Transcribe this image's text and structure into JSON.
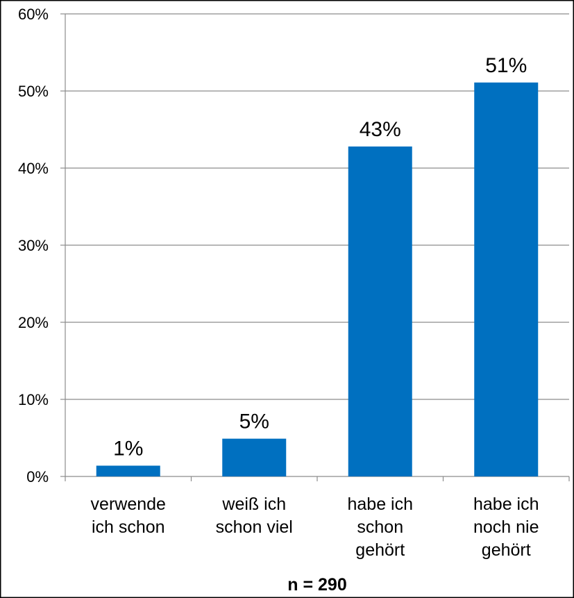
{
  "chart_data": {
    "type": "bar",
    "categories": [
      [
        "verwende",
        "ich schon"
      ],
      [
        "weiß ich",
        "schon viel"
      ],
      [
        "habe ich",
        "schon",
        "gehört"
      ],
      [
        "habe ich",
        "noch nie",
        "gehört"
      ]
    ],
    "values": [
      1.4,
      4.9,
      42.8,
      51.1
    ],
    "data_labels": [
      "1%",
      "5%",
      "43%",
      "51%"
    ],
    "y_ticks": [
      0,
      10,
      20,
      30,
      40,
      50,
      60
    ],
    "y_tick_labels": [
      "0%",
      "10%",
      "20%",
      "30%",
      "40%",
      "50%",
      "60%"
    ],
    "ylim": [
      0,
      60
    ],
    "grid": true,
    "legend": "none",
    "bar_color": "#0070C0",
    "footnote": "n = 290"
  }
}
